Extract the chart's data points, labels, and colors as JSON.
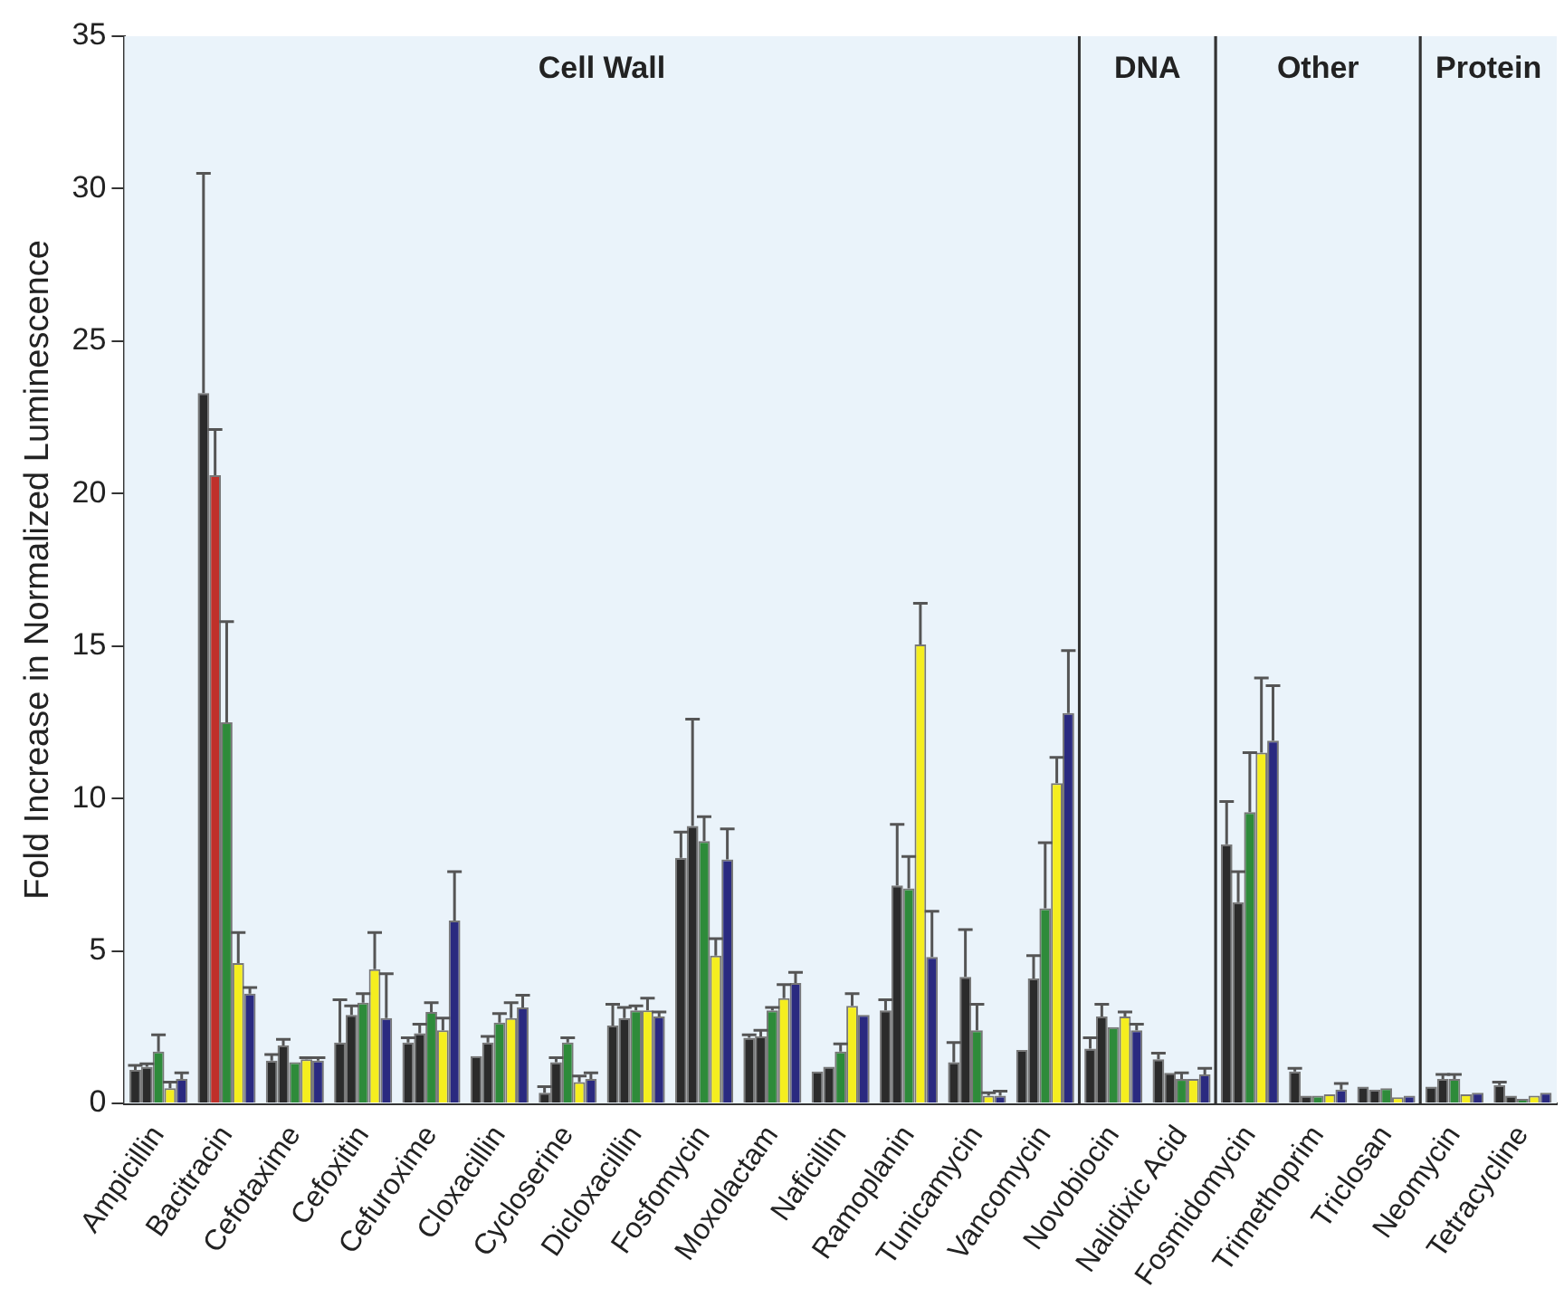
{
  "chart_data": {
    "type": "bar",
    "ylabel": "Fold Increase in Normalized Luminescence",
    "categories": [
      "Ampicillin",
      "Bacitracin",
      "Cefotaxime",
      "Cefoxitin",
      "Cefuroxime",
      "Cloxacillin",
      "Cycloserine",
      "Dicloxacillin",
      "Fosfomycin",
      "Moxolactam",
      "Naficillin",
      "Ramoplanin",
      "Tunicamycin",
      "Vancomycin",
      "Novobiocin",
      "Nalidixic Acid",
      "Fosmidomycin",
      "Trimethoprim",
      "Triclosan",
      "Neomycin",
      "Tetracycline"
    ],
    "series": [
      {
        "color": "#2b2b2b",
        "values": [
          1.1,
          23.3,
          1.4,
          2.0,
          2.0,
          1.55,
          0.35,
          2.55,
          8.05,
          2.15,
          1.05,
          3.05,
          1.35,
          1.75,
          1.8,
          1.45,
          8.5,
          1.05,
          0.55,
          0.55,
          0.6
        ],
        "errors": [
          [
            1.1,
            1.25
          ],
          [
            23.3,
            30.5
          ],
          [
            1.4,
            1.6
          ],
          [
            2.0,
            3.4
          ],
          [
            2.0,
            2.15
          ],
          null,
          [
            0.35,
            0.55
          ],
          [
            2.55,
            3.25
          ],
          [
            8.05,
            8.9
          ],
          [
            2.15,
            2.25
          ],
          null,
          [
            3.05,
            3.4
          ],
          [
            1.35,
            2.0
          ],
          null,
          [
            1.8,
            2.15
          ],
          [
            1.45,
            1.65
          ],
          [
            8.5,
            9.9
          ],
          [
            1.05,
            1.15
          ],
          null,
          null,
          [
            0.6,
            0.7
          ]
        ]
      },
      {
        "colors": [
          "#2b2b2b",
          "#c0302a",
          "#2b2b2b",
          "#2b2b2b",
          "#2b2b2b",
          "#2b2b2b",
          "#2b2b2b",
          "#2b2b2b",
          "#2b2b2b",
          "#2b2b2b",
          "#2b2b2b",
          "#2b2b2b",
          "#2b2b2b",
          "#2b2b2b",
          "#2b2b2b",
          "#2b2b2b",
          "#2b2b2b",
          "#2b2b2b",
          "#2b2b2b",
          "#2b2b2b",
          "#2b2b2b"
        ],
        "values": [
          1.2,
          20.6,
          1.9,
          2.9,
          2.3,
          2.0,
          1.35,
          2.8,
          9.1,
          2.2,
          1.2,
          7.15,
          4.15,
          4.1,
          2.85,
          1.0,
          6.6,
          0.25,
          0.45,
          0.8,
          0.25
        ],
        "errors": [
          [
            1.2,
            1.3
          ],
          [
            20.6,
            22.1
          ],
          [
            1.9,
            2.1
          ],
          [
            2.9,
            3.2
          ],
          [
            2.3,
            2.6
          ],
          [
            2.0,
            2.2
          ],
          [
            1.35,
            1.5
          ],
          [
            2.8,
            3.15
          ],
          [
            9.1,
            12.6
          ],
          [
            2.2,
            2.4
          ],
          null,
          [
            7.15,
            9.15
          ],
          [
            4.15,
            5.7
          ],
          [
            4.1,
            4.85
          ],
          [
            2.85,
            3.25
          ],
          null,
          [
            6.6,
            7.6
          ],
          null,
          null,
          [
            0.8,
            0.95
          ],
          null
        ]
      },
      {
        "color": "#2e8b3a",
        "values": [
          1.7,
          12.5,
          1.35,
          3.3,
          3.0,
          2.65,
          2.0,
          3.05,
          8.6,
          3.05,
          1.7,
          7.05,
          2.4,
          6.4,
          2.5,
          0.8,
          9.55,
          0.25,
          0.5,
          0.8,
          0.15
        ],
        "errors": [
          [
            1.7,
            2.25
          ],
          [
            12.5,
            15.8
          ],
          null,
          [
            3.3,
            3.6
          ],
          [
            3.0,
            3.3
          ],
          [
            2.65,
            2.95
          ],
          [
            2.0,
            2.15
          ],
          [
            3.05,
            3.2
          ],
          [
            8.6,
            9.4
          ],
          [
            3.05,
            3.15
          ],
          [
            1.7,
            1.95
          ],
          [
            7.05,
            8.1
          ],
          [
            2.4,
            3.25
          ],
          [
            6.4,
            8.55
          ],
          null,
          [
            0.8,
            1.0
          ],
          [
            9.55,
            11.5
          ],
          null,
          null,
          [
            0.8,
            0.95
          ],
          null
        ]
      },
      {
        "color": "#f5ee1f",
        "values": [
          0.5,
          4.6,
          1.45,
          4.4,
          2.4,
          2.8,
          0.7,
          3.05,
          4.85,
          3.45,
          3.2,
          15.05,
          0.25,
          10.5,
          2.85,
          0.8,
          11.5,
          0.3,
          0.2,
          0.3,
          0.25
        ],
        "errors": [
          [
            0.5,
            0.7
          ],
          [
            4.6,
            5.6
          ],
          [
            1.45,
            1.5
          ],
          [
            4.4,
            5.6
          ],
          [
            2.4,
            2.8
          ],
          [
            2.8,
            3.3
          ],
          [
            0.7,
            0.9
          ],
          [
            3.05,
            3.45
          ],
          [
            4.85,
            5.4
          ],
          [
            3.45,
            3.9
          ],
          [
            3.2,
            3.6
          ],
          [
            15.05,
            16.4
          ],
          [
            0.25,
            0.35
          ],
          [
            10.5,
            11.35
          ],
          [
            2.85,
            3.0
          ],
          null,
          [
            11.5,
            13.95
          ],
          null,
          null,
          null,
          null
        ]
      },
      {
        "color": "#2a2a80",
        "values": [
          0.8,
          3.6,
          1.4,
          2.8,
          6.0,
          3.15,
          0.8,
          2.85,
          8.0,
          3.95,
          2.9,
          4.8,
          0.25,
          12.8,
          2.4,
          0.95,
          11.9,
          0.45,
          0.25,
          0.35,
          0.35
        ],
        "errors": [
          [
            0.8,
            1.0
          ],
          [
            3.6,
            3.8
          ],
          [
            1.4,
            1.5
          ],
          [
            2.8,
            4.25
          ],
          [
            6.0,
            7.6
          ],
          [
            3.15,
            3.55
          ],
          [
            0.8,
            1.0
          ],
          [
            2.85,
            3.0
          ],
          [
            8.0,
            9.0
          ],
          [
            3.95,
            4.3
          ],
          null,
          [
            4.8,
            6.3
          ],
          [
            0.25,
            0.4
          ],
          [
            12.8,
            14.85
          ],
          [
            2.4,
            2.6
          ],
          [
            0.95,
            1.15
          ],
          [
            11.9,
            13.7
          ],
          [
            0.45,
            0.65
          ],
          null,
          null,
          null
        ]
      }
    ],
    "bands": [
      {
        "axis": "x",
        "from": "Ampicillin",
        "to": "Vancomycin",
        "label": "Cell Wall",
        "color": "#eaf3fa"
      },
      {
        "axis": "x",
        "from": "Novobiocin",
        "to": "Nalidixic Acid",
        "label": "DNA",
        "color": "#eaf3fa"
      },
      {
        "axis": "x",
        "from": "Fosmidomycin",
        "to": "Triclosan",
        "label": "Other",
        "color": "#eaf3fa"
      },
      {
        "axis": "x",
        "from": "Neomycin",
        "to": "Tetracycline",
        "label": "Protein",
        "color": "#eaf3fa"
      }
    ],
    "ylim": [
      0,
      35
    ],
    "yticks": [
      0,
      5,
      10,
      15,
      20,
      25,
      30,
      35
    ],
    "grid": false,
    "legend": false
  }
}
